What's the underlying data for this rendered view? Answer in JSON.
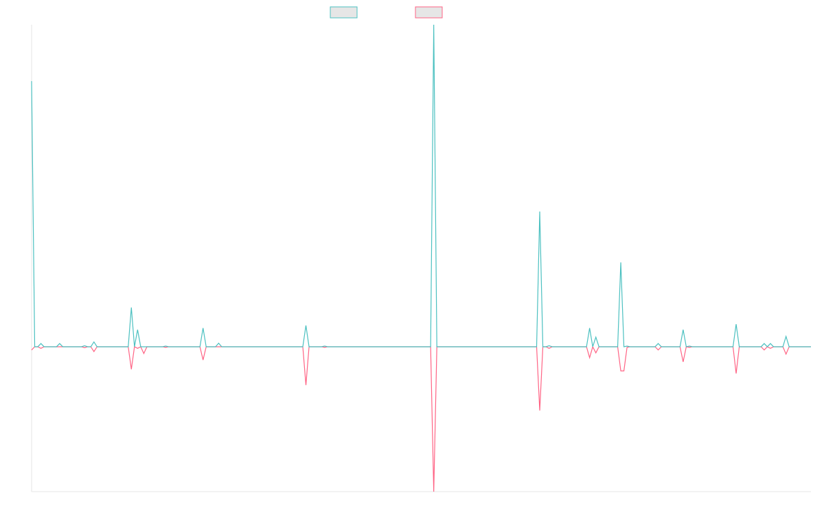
{
  "chart_data": {
    "type": "line",
    "x": [
      0,
      1,
      2,
      3,
      4,
      8,
      9,
      10,
      16,
      17,
      18,
      19,
      20,
      21,
      31,
      32,
      33,
      34,
      35,
      36,
      37,
      42,
      43,
      44,
      54,
      55,
      56,
      59,
      60,
      61,
      87,
      88,
      89,
      93,
      94,
      95,
      128,
      129,
      130,
      162,
      163,
      164,
      165,
      166,
      167,
      178,
      179,
      180,
      181,
      182,
      188,
      189,
      190,
      191,
      192,
      200,
      201,
      202,
      208,
      209,
      210,
      211,
      212,
      225,
      226,
      227,
      234,
      235,
      236,
      237,
      238,
      241,
      242,
      243,
      250
    ],
    "xlim": [
      0,
      250
    ],
    "ylim": [
      -45,
      100
    ],
    "series": [
      {
        "color": "#ff6384",
        "values": [
          -1,
          0,
          0,
          -0.5,
          0,
          0,
          0,
          0,
          0,
          -0.3,
          0,
          0,
          -1.5,
          0,
          0,
          -7,
          0,
          -0.5,
          0,
          -2.1,
          0,
          0,
          -0.2,
          0,
          0,
          -4.1,
          0,
          0,
          0,
          0,
          0,
          -11.9,
          0,
          0,
          -0.2,
          0,
          0,
          -45,
          0,
          0,
          -19.8,
          0,
          0,
          -0.5,
          0,
          0,
          -3.4,
          0,
          -1.9,
          0,
          0,
          -7.5,
          -7.5,
          -0.2,
          0,
          0,
          -1,
          0,
          0,
          -4.7,
          0,
          -0.2,
          0,
          0,
          -8.3,
          0,
          0,
          -1,
          0,
          -0.5,
          0,
          0,
          -2.3,
          0,
          0
        ]
      },
      {
        "color": "#4bc0c0",
        "values": [
          82.5,
          0,
          0,
          1,
          0,
          0,
          1,
          0,
          0,
          0.3,
          0,
          0,
          1.5,
          0,
          0,
          12.2,
          0,
          5.3,
          0,
          0,
          0,
          0,
          0.2,
          0,
          0,
          5.8,
          0,
          0,
          1.1,
          0,
          0,
          6.6,
          0,
          0,
          0.2,
          0,
          0,
          100,
          0,
          0,
          42,
          0,
          0,
          0.3,
          0,
          0,
          5.8,
          0,
          3,
          0,
          0,
          26.2,
          0,
          0.2,
          0,
          0,
          1,
          0,
          0,
          5.3,
          0,
          0.2,
          0,
          0,
          7,
          0,
          0,
          1,
          0,
          1,
          0,
          0,
          3.2,
          0,
          0
        ]
      }
    ]
  }
}
